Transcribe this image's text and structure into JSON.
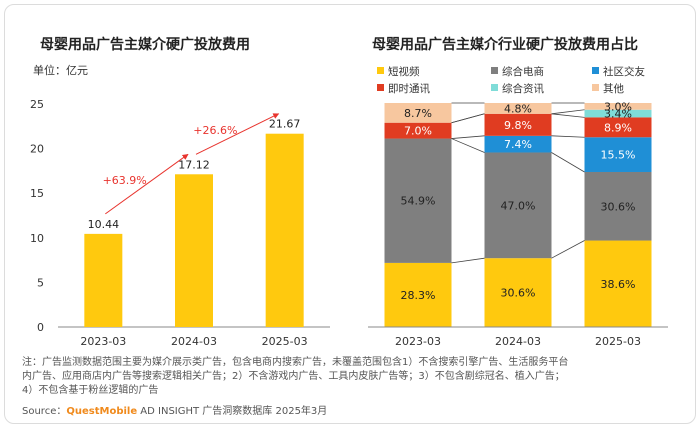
{
  "left_chart": {
    "title": "母婴用品广告主媒介硬广投放费用",
    "unit_label": "单位：亿元"
  },
  "right_chart": {
    "title": "母婴用品广告主媒介行业硬广投放费用占比"
  },
  "notes": [
    "注：广告监测数据范围主要为媒介展示类广告，包含电商内搜索广告，未覆盖范围包含1）不含搜索引擎广告、生活服务平台",
    "内广告、应用商店内广告等搜索逻辑相关广告；2）不含游戏内广告、工具内皮肤广告等；3）不包含剧综冠名、植入广告；",
    "4）不包含基于粉丝逻辑的广告"
  ],
  "source": {
    "prefix": "Source：",
    "brand": "QuestMobile",
    "suffix": " AD INSIGHT 广告洞察数据库 2025年3月"
  },
  "colors": {
    "bar": "#ffc90e",
    "arrow": "#e8342e",
    "growth_text": "#e8342e"
  },
  "chart_data": [
    {
      "type": "bar",
      "title": "母婴用品广告主媒介硬广投放费用",
      "ylabel": "单位：亿元",
      "categories": [
        "2023-03",
        "2024-03",
        "2025-03"
      ],
      "values": [
        10.44,
        17.12,
        21.67
      ],
      "value_labels": [
        "10.44",
        "17.12",
        "21.67"
      ],
      "ylim": [
        0,
        25
      ],
      "yticks": [
        0,
        5,
        10,
        15,
        20,
        25
      ],
      "annotations": [
        "+63.9%",
        "+26.6%"
      ],
      "grid": false
    },
    {
      "type": "bar",
      "stacked": true,
      "percent": true,
      "title": "母婴用品广告主媒介行业硬广投放费用占比",
      "categories": [
        "2023-03",
        "2024-03",
        "2025-03"
      ],
      "legend_position": "top",
      "series": [
        {
          "name": "短视频",
          "color": "#ffc90e",
          "values": [
            28.3,
            30.6,
            38.6
          ],
          "labels": [
            "28.3%",
            "30.6%",
            "38.6%"
          ]
        },
        {
          "name": "综合电商",
          "color": "#7f7f7f",
          "values": [
            54.9,
            47.0,
            30.6
          ],
          "labels": [
            "54.9%",
            "47.0%",
            "30.6%"
          ]
        },
        {
          "name": "社区交友",
          "color": "#1f8fd6",
          "values": [
            0,
            7.4,
            15.5
          ],
          "labels": [
            "",
            "7.4%",
            "15.5%"
          ]
        },
        {
          "name": "即时通讯",
          "color": "#e03c21",
          "values": [
            7.0,
            9.8,
            8.9
          ],
          "labels": [
            "7.0%",
            "9.8%",
            "8.9%"
          ]
        },
        {
          "name": "综合资讯",
          "color": "#7fdcd8",
          "values": [
            0,
            0,
            3.4
          ],
          "labels": [
            "",
            "",
            "3.4%"
          ]
        },
        {
          "name": "其他",
          "color": "#f7c79f",
          "values": [
            8.7,
            4.8,
            3.0
          ],
          "labels": [
            "8.7%",
            "4.8%",
            "3.0%"
          ]
        }
      ]
    }
  ]
}
